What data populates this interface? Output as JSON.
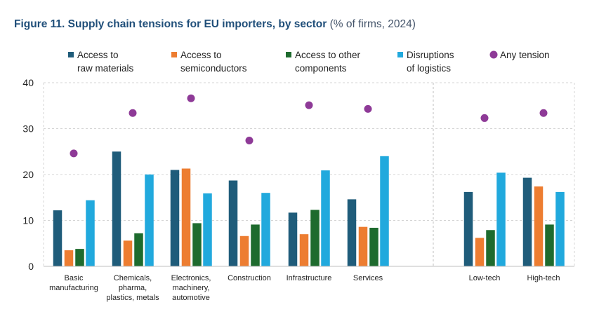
{
  "title": {
    "bold": "Figure 11. Supply chain tensions for EU importers, by sector",
    "sub": "(% of firms, 2024)"
  },
  "chart_data": {
    "type": "bar",
    "title": "Figure 11. Supply chain tensions for EU importers, by sector (% of firms, 2024)",
    "xlabel": "",
    "ylabel": "",
    "ylim": [
      0,
      40
    ],
    "yticks": [
      0,
      10,
      20,
      30,
      40
    ],
    "grid": true,
    "legend_position": "top",
    "categories": [
      [
        "Basic",
        "manufacturing"
      ],
      [
        "Chemicals,",
        "pharma,",
        "plastics, metals"
      ],
      [
        "Electronics,",
        "machinery,",
        "automotive"
      ],
      [
        "Construction"
      ],
      [
        "Infrastructure"
      ],
      [
        "Services"
      ],
      [
        "Low-tech"
      ],
      [
        "High-tech"
      ]
    ],
    "group_separator_after_index": 5,
    "series": [
      {
        "name": [
          "Access to",
          "raw materials"
        ],
        "kind": "bar",
        "color": "#1f5c7a",
        "values": [
          12.2,
          25.0,
          21.0,
          18.7,
          11.7,
          14.6,
          16.2,
          19.3
        ]
      },
      {
        "name": [
          "Access to",
          "semiconductors"
        ],
        "kind": "bar",
        "color": "#ed7d31",
        "values": [
          3.5,
          5.6,
          21.3,
          6.6,
          7.0,
          8.6,
          6.2,
          17.4
        ]
      },
      {
        "name": [
          "Access to other",
          "components"
        ],
        "kind": "bar",
        "color": "#1e6b2e",
        "values": [
          3.8,
          7.2,
          9.4,
          9.1,
          12.3,
          8.4,
          7.9,
          9.1
        ]
      },
      {
        "name": [
          "Disruptions",
          "of logistics"
        ],
        "kind": "bar",
        "color": "#21a9dd",
        "values": [
          14.4,
          20.0,
          15.9,
          16.0,
          20.9,
          24.0,
          20.4,
          16.2
        ]
      },
      {
        "name": [
          "Any tension"
        ],
        "kind": "dot",
        "color": "#8e3a97",
        "values": [
          24.6,
          33.4,
          36.6,
          27.4,
          35.1,
          34.3,
          32.3,
          33.4
        ]
      }
    ]
  }
}
